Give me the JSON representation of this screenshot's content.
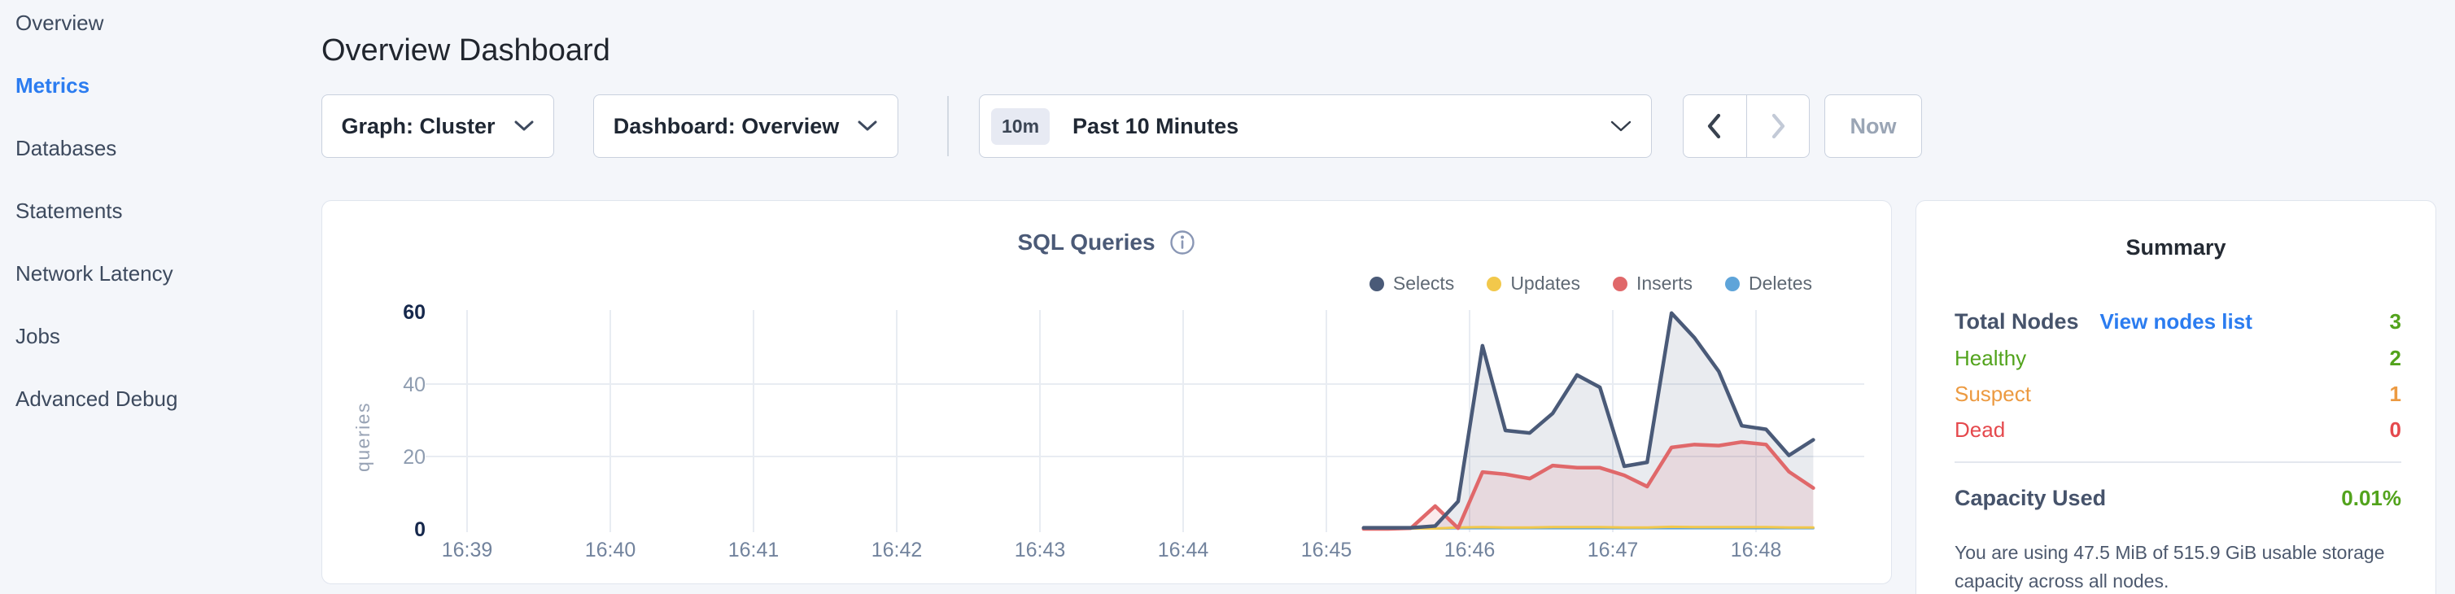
{
  "sidebar": {
    "items": [
      {
        "label": "Overview",
        "active": false
      },
      {
        "label": "Metrics",
        "active": true
      },
      {
        "label": "Databases",
        "active": false
      },
      {
        "label": "Statements",
        "active": false
      },
      {
        "label": "Network Latency",
        "active": false
      },
      {
        "label": "Jobs",
        "active": false
      },
      {
        "label": "Advanced Debug",
        "active": false
      }
    ]
  },
  "header": {
    "title": "Overview Dashboard"
  },
  "toolbar": {
    "graph_dropdown": {
      "label": "Graph: Cluster"
    },
    "dashboard_dropdown": {
      "label": "Dashboard: Overview"
    },
    "time_window": {
      "badge": "10m",
      "label": "Past 10 Minutes"
    },
    "now_label": "Now"
  },
  "colors": {
    "accent_blue": "#2b7cf0",
    "green": "#52a31c",
    "orange": "#ec9a41",
    "red": "#e5494d",
    "selects_navy": "#4a5a78",
    "updates_yellow": "#f2c84b",
    "inserts_coral": "#e0686a",
    "deletes_blue": "#5ea4d9"
  },
  "chart_data": {
    "type": "line",
    "title": "SQL Queries",
    "ylabel": "queries",
    "ylim": [
      0,
      60
    ],
    "yticks": [
      0,
      20,
      40,
      60
    ],
    "x_ticks": [
      "16:39",
      "16:40",
      "16:41",
      "16:42",
      "16:43",
      "16:44",
      "16:45",
      "16:46",
      "16:47",
      "16:48"
    ],
    "grid": true,
    "legend_position": "top-right",
    "x_minutes_from_1639": [
      6.26,
      6.43,
      6.59,
      6.76,
      6.92,
      7.09,
      7.25,
      7.42,
      7.58,
      7.75,
      7.91,
      8.08,
      8.24,
      8.41,
      8.57,
      8.74,
      8.9,
      9.07,
      9.23,
      9.4
    ],
    "series": [
      {
        "name": "Selects",
        "color": "#4a5a78",
        "fill": "rgba(74,90,120,0.12)",
        "line_width": 4.5,
        "values": [
          0.3,
          0.3,
          0.3,
          0.8,
          7.6,
          50.6,
          27.2,
          26.5,
          31.9,
          42.5,
          39.1,
          17.3,
          18.4,
          59.6,
          52.8,
          43.5,
          28.5,
          27.5,
          20.3,
          24.6
        ]
      },
      {
        "name": "Updates",
        "color": "#f2c84b",
        "fill": null,
        "line_width": 3,
        "values": [
          0.1,
          0.1,
          0.1,
          0.1,
          0.4,
          0.5,
          0.4,
          0.4,
          0.5,
          0.5,
          0.5,
          0.4,
          0.4,
          0.6,
          0.5,
          0.5,
          0.5,
          0.5,
          0.4,
          0.4
        ]
      },
      {
        "name": "Inserts",
        "color": "#e0686a",
        "fill": "rgba(224,104,106,0.13)",
        "line_width": 4.5,
        "values": [
          0.0,
          0.0,
          0.2,
          6.3,
          0.2,
          15.7,
          15.1,
          13.9,
          17.5,
          16.9,
          16.9,
          14.8,
          11.7,
          22.5,
          23.3,
          23.0,
          24.0,
          23.3,
          15.8,
          11.3
        ]
      },
      {
        "name": "Deletes",
        "color": "#5ea4d9",
        "fill": null,
        "line_width": 3,
        "values": [
          0.1,
          0.1,
          0.1,
          0.1,
          0.2,
          0.2,
          0.2,
          0.2,
          0.2,
          0.2,
          0.2,
          0.2,
          0.2,
          0.2,
          0.2,
          0.2,
          0.2,
          0.2,
          0.2,
          0.2
        ]
      }
    ]
  },
  "summary": {
    "title": "Summary",
    "total": {
      "label": "Total Nodes",
      "link_label": "View nodes list",
      "value": "3",
      "value_color": "#52a31c"
    },
    "node_rows": [
      {
        "label": "Healthy",
        "value": "2",
        "color": "#52a31c"
      },
      {
        "label": "Suspect",
        "value": "1",
        "color": "#ec9a41"
      },
      {
        "label": "Dead",
        "value": "0",
        "color": "#e5494d"
      }
    ],
    "capacity": {
      "label": "Capacity Used",
      "value": "0.01%",
      "value_color": "#52a31c",
      "description": "You are using 47.5 MiB of 515.9 GiB usable storage capacity across all nodes."
    }
  }
}
